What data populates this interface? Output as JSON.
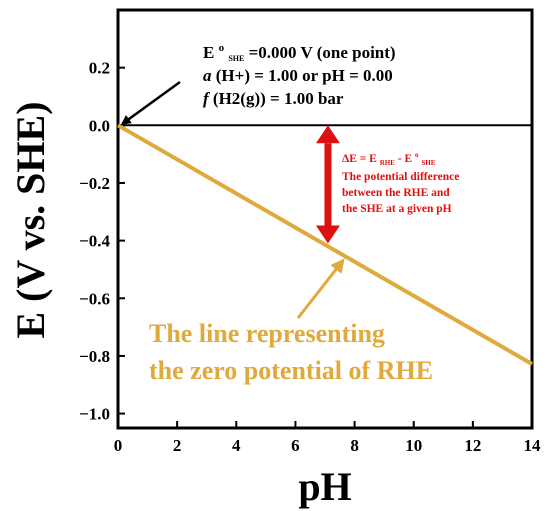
{
  "chart_data": {
    "type": "line",
    "xlabel": "pH",
    "ylabel": "E (V vs. SHE)",
    "xlim": [
      0,
      14
    ],
    "ylim": [
      -1.05,
      0.4
    ],
    "x_ticks": [
      0,
      2,
      4,
      6,
      8,
      10,
      12,
      14
    ],
    "x_tick_labels": [
      "0",
      "2",
      "4",
      "6",
      "8",
      "10",
      "12",
      "14"
    ],
    "y_ticks": [
      0.2,
      0.0,
      -0.2,
      -0.4,
      -0.6,
      -0.8,
      -1.0
    ],
    "y_tick_labels": [
      "0.2",
      "0.0",
      "−0.2",
      "−0.4",
      "−0.6",
      "−0.8",
      "−1.0"
    ],
    "grid": false,
    "series": [
      {
        "name": "",
        "color": "#E0A93C",
        "x": [
          0,
          14
        ],
        "y": [
          0.0,
          -0.828
        ]
      }
    ],
    "reference_line": {
      "y": 0.0,
      "color": "#000000"
    },
    "annotations": {
      "she": {
        "line1_E": "E",
        "line1_sup": "o",
        "line1_sub": "SHE",
        "line1_rest": " =0.000 V (one point)",
        "line2_a": "a",
        "line2_rest": "(H+) = 1.00 or pH = 0.00",
        "line3_f": "f",
        "line3_rest": "(H2(g)) = 1.00 bar",
        "arrow_color": "#000000",
        "arrow_tip": {
          "x": 0.05,
          "y": -0.005
        }
      },
      "delta": {
        "line1_a": "ΔE = E",
        "line1_sub1": "RHE",
        "line1_b": " - E",
        "line1_sup2": "o",
        "line1_sub2": "SHE",
        "line2": "The potential difference",
        "line3": "between the RHE and",
        "line4": "the SHE at a given pH",
        "color": "#DD1111",
        "arrow_x": 7.1,
        "arrow_y_top": 0.0,
        "arrow_y_bottom": -0.41
      },
      "rhe": {
        "line1": "The line representing",
        "line2": "the zero potential of RHE",
        "color": "#E0A93C",
        "arrow_tip": {
          "x": 7.6,
          "y": -0.47
        }
      }
    }
  }
}
